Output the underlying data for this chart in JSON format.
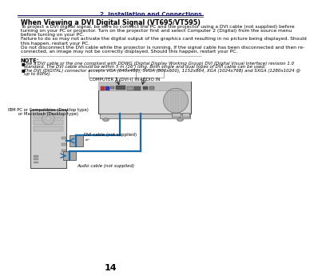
{
  "bg_color": "#ffffff",
  "header_line_color": "#1a1a6e",
  "header_text": "2. Installation and Connections",
  "header_text_color": "#1a1a6e",
  "section_title": "When Viewing a DVI Digital Signal (VT695/VT595)",
  "page_number": "14",
  "cable_color": "#1a6aaa",
  "body_lines": [
    "To project a DVI digital signal, be sure to connect the PC and the projector using a DVI cable (not supplied) before",
    "turning on your PC or projector. Turn on the projector first and select Computer 2 (Digital) from the source menu",
    "before turning on your PC.",
    "Failure to do so may not activate the digital output of the graphics card resulting in no picture being displayed. Should",
    "this happen, restart your PC.",
    "Do not disconnect the DVI cable while the projector is running. If the signal cable has been disconnected and then re-",
    "connected, an image may not be correctly displayed. Should this happen, restart your PC."
  ],
  "note_label": "NOTE:",
  "note_items": [
    "Use a DVI cable or the one compliant with DDWG (Digital Display Working Group) DVI (Digital Visual Interface) revision 1.0",
    "standard. The DVI cable should be within 5 m (16’) long. Both single and dual types of DVI cable can be used.",
    "The DVI (DIGITAL) connector accepts VGA (640x480), SVGA (800x600), 1152x864, XGA (1024x768) and SXGA (1280x1024 @",
    "up to 60Hz)."
  ],
  "label_computer": "COMPUTER 2 (DVI-I) IN",
  "label_audio": "AUDIO IN",
  "label_pc": "IBM PC or Compatibles (Desktop type)\nor Macintosh (Desktop type)",
  "label_dvi_cable": "DVI cable (not supplied)",
  "label_audio_cable": "Audio cable (not supplied)"
}
